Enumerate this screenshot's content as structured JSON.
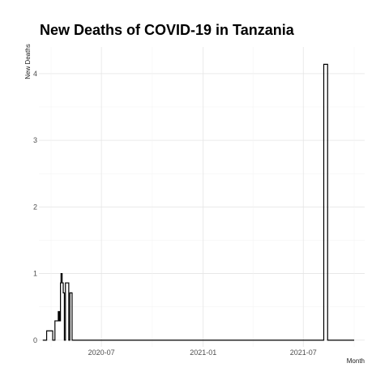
{
  "chart_data": {
    "type": "line",
    "title": "New Deaths of COVID-19 in Tanzania",
    "xlabel": "Month",
    "ylabel": "New Deaths",
    "x_tick_labels": [
      "2020-07",
      "2021-01",
      "2021-07"
    ],
    "x_ticks": [
      "2020-07-01",
      "2021-01-01",
      "2021-07-01"
    ],
    "y_tick_labels": [
      "0",
      "1",
      "2",
      "3",
      "4"
    ],
    "xlim": [
      "2020-03-10",
      "2021-10-20"
    ],
    "ylim": [
      -0.1,
      4.4
    ],
    "grid": true,
    "series": [
      {
        "line_style": "step",
        "points": [
          {
            "x": "2020-03-17",
            "y": 0
          },
          {
            "x": "2020-03-24",
            "y": 0.14
          },
          {
            "x": "2020-04-01",
            "y": 0.14
          },
          {
            "x": "2020-04-04",
            "y": 0
          },
          {
            "x": "2020-04-08",
            "y": 0.29
          },
          {
            "x": "2020-04-13",
            "y": 0.29
          },
          {
            "x": "2020-04-14",
            "y": 0.43
          },
          {
            "x": "2020-04-15",
            "y": 0.29
          },
          {
            "x": "2020-04-16",
            "y": 0.43
          },
          {
            "x": "2020-04-17",
            "y": 0.29
          },
          {
            "x": "2020-04-18",
            "y": 0.86
          },
          {
            "x": "2020-04-19",
            "y": 1.0
          },
          {
            "x": "2020-04-21",
            "y": 0.86
          },
          {
            "x": "2020-04-23",
            "y": 0.71
          },
          {
            "x": "2020-04-25",
            "y": 0
          },
          {
            "x": "2020-04-27",
            "y": 0.86
          },
          {
            "x": "2020-05-02",
            "y": 0.86
          },
          {
            "x": "2020-05-03",
            "y": 0
          },
          {
            "x": "2020-05-05",
            "y": 0.71
          },
          {
            "x": "2020-05-08",
            "y": 0.71
          },
          {
            "x": "2020-05-09",
            "y": 0
          },
          {
            "x": "2021-08-06",
            "y": 0
          },
          {
            "x": "2021-08-07",
            "y": 4.14
          },
          {
            "x": "2021-08-13",
            "y": 4.14
          },
          {
            "x": "2021-08-14",
            "y": 0
          },
          {
            "x": "2021-10-01",
            "y": 0
          }
        ]
      }
    ]
  }
}
